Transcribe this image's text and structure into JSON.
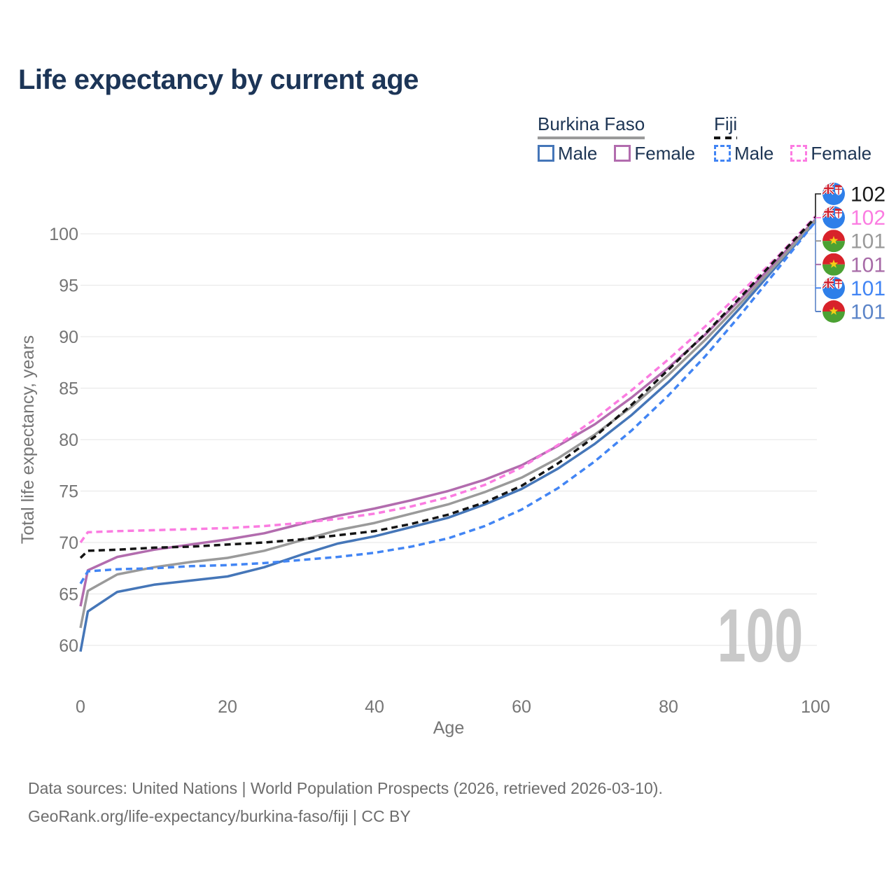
{
  "title": "Life expectancy by current age",
  "legend": {
    "groups": [
      {
        "country": "Burkina Faso",
        "line_style": "solid",
        "line_color": "#9a9a9a",
        "items": [
          {
            "label": "Male",
            "color": "#4576b8",
            "dashed": false
          },
          {
            "label": "Female",
            "color": "#b26cae",
            "dashed": false
          }
        ]
      },
      {
        "country": "Fiji",
        "line_style": "dashed",
        "line_color": "#141414",
        "items": [
          {
            "label": "Male",
            "color": "#4285f4",
            "dashed": true
          },
          {
            "label": "Female",
            "color": "#fc7ce2",
            "dashed": true
          }
        ]
      }
    ]
  },
  "chart_data": {
    "type": "line",
    "title": "Life expectancy by current age",
    "xlabel": "Age",
    "ylabel": "Total life expectancy, years",
    "xlim": [
      0,
      100
    ],
    "ylim": [
      58.5,
      103
    ],
    "x_ticks": [
      0,
      20,
      40,
      60,
      80,
      100
    ],
    "y_ticks": [
      60,
      65,
      70,
      75,
      80,
      85,
      90,
      95,
      100
    ],
    "grid": "horizontal",
    "legend_position": "top-right",
    "watermark": "100",
    "x": [
      0,
      1,
      5,
      10,
      15,
      20,
      25,
      30,
      35,
      40,
      45,
      50,
      55,
      60,
      65,
      70,
      75,
      80,
      85,
      90,
      95,
      100
    ],
    "series": [
      {
        "name": "burkina-faso-male",
        "country": "Burkina Faso",
        "sex": "Male",
        "color": "#4576b8",
        "dashed": false,
        "values": [
          59.4,
          63.3,
          65.2,
          65.9,
          66.3,
          66.7,
          67.6,
          68.8,
          69.9,
          70.6,
          71.5,
          72.4,
          73.7,
          75.2,
          77.2,
          79.6,
          82.4,
          85.6,
          89.1,
          93.0,
          97.1,
          101.2
        ]
      },
      {
        "name": "burkina-faso-female",
        "country": "Burkina Faso",
        "sex": "Female",
        "color": "#b26cae",
        "dashed": false,
        "values": [
          63.8,
          67.3,
          68.6,
          69.3,
          69.8,
          70.3,
          70.9,
          71.8,
          72.6,
          73.3,
          74.1,
          75.0,
          76.1,
          77.5,
          79.4,
          81.5,
          84.1,
          87.0,
          90.2,
          93.8,
          97.6,
          101.4
        ]
      },
      {
        "name": "burkina-faso-all",
        "country": "Burkina Faso",
        "sex": "Both",
        "color": "#9a9a9a",
        "dashed": false,
        "values": [
          61.7,
          65.3,
          66.9,
          67.6,
          68.1,
          68.5,
          69.2,
          70.2,
          71.2,
          71.9,
          72.8,
          73.7,
          74.9,
          76.3,
          78.2,
          80.5,
          83.2,
          86.3,
          89.7,
          93.4,
          97.3,
          101.3
        ]
      },
      {
        "name": "fiji-male",
        "country": "Fiji",
        "sex": "Male",
        "color": "#4285f4",
        "dashed": true,
        "values": [
          66.0,
          67.2,
          67.4,
          67.5,
          67.7,
          67.8,
          68.0,
          68.3,
          68.6,
          69.0,
          69.6,
          70.4,
          71.6,
          73.2,
          75.3,
          77.9,
          80.9,
          84.3,
          88.1,
          92.3,
          96.7,
          101.2
        ]
      },
      {
        "name": "fiji-female",
        "country": "Fiji",
        "sex": "Female",
        "color": "#fb7ce1",
        "dashed": true,
        "values": [
          70.0,
          71.0,
          71.1,
          71.2,
          71.3,
          71.4,
          71.6,
          71.9,
          72.3,
          72.8,
          73.5,
          74.4,
          75.6,
          77.3,
          79.5,
          82.0,
          84.8,
          87.8,
          91.0,
          94.4,
          97.9,
          101.7
        ]
      },
      {
        "name": "fiji-all",
        "country": "Fiji",
        "sex": "Both",
        "color": "#141414",
        "dashed": true,
        "values": [
          68.5,
          69.2,
          69.3,
          69.5,
          69.6,
          69.8,
          70.0,
          70.3,
          70.7,
          71.1,
          71.8,
          72.7,
          73.9,
          75.5,
          77.7,
          80.3,
          83.4,
          86.8,
          90.3,
          94.0,
          97.8,
          101.6
        ]
      }
    ]
  },
  "callouts": [
    {
      "flag": "fiji",
      "series": "fiji-all",
      "value": "102",
      "color": "#1a1a1a"
    },
    {
      "flag": "fiji",
      "series": "fiji-female",
      "value": "102",
      "color": "#fb7ce1"
    },
    {
      "flag": "burkina_faso",
      "series": "burkina-faso-all",
      "value": "101",
      "color": "#9a9a9a"
    },
    {
      "flag": "burkina_faso",
      "series": "burkina-faso-female",
      "value": "101",
      "color": "#a76ba7"
    },
    {
      "flag": "fiji",
      "series": "fiji-male",
      "value": "101",
      "color": "#4285f4"
    },
    {
      "flag": "burkina_faso",
      "series": "burkina-faso-male",
      "value": "101",
      "color": "#5b84c8"
    }
  ],
  "flags": {
    "fiji": {
      "field": "#2e7fe9",
      "jack": "#25479c",
      "white": "#ffffff",
      "red": "#d0202e"
    },
    "burkina_faso": {
      "red": "#d8222a",
      "green": "#4ba133",
      "star": "#f2cf16"
    }
  },
  "colors": {
    "title_text": "#1c3557",
    "axis_text": "#757575",
    "gridline": "#eaeaea",
    "watermark": "#c9c9c9",
    "footer_text": "#6d6d6d"
  },
  "footer": {
    "line1": "Data sources: United Nations | World Population Prospects (2026, retrieved 2026-03-10).",
    "line2": "GeoRank.org/life-expectancy/burkina-faso/fiji | CC BY"
  }
}
